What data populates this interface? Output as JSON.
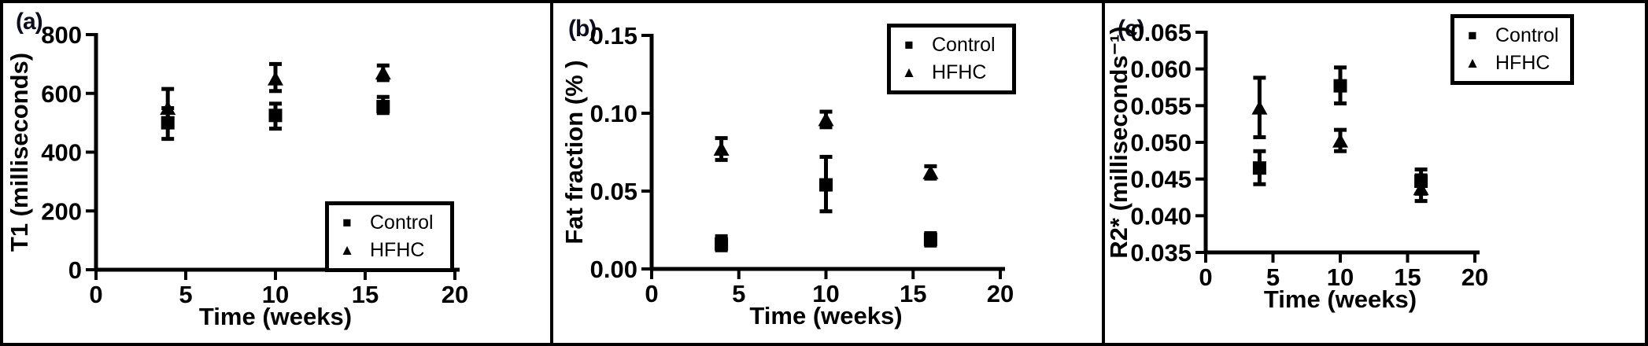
{
  "figure": {
    "background": "#ffffff",
    "border_color": "#000000",
    "accent_color": "#000000"
  },
  "chart_data": [
    {
      "type": "scatter",
      "panel_label": "(a)",
      "xlabel": "Time (weeks)",
      "ylabel": "T1 (milliseconds)",
      "xlim": [
        0,
        20
      ],
      "ylim": [
        0,
        800
      ],
      "xticks": {
        "values": [
          0,
          5,
          10,
          15,
          20
        ],
        "labels": [
          "0",
          "5",
          "10",
          "15",
          "20"
        ]
      },
      "yticks": {
        "values": [
          0,
          200,
          400,
          600,
          800
        ],
        "labels": [
          "0",
          "200",
          "400",
          "600",
          "800"
        ]
      },
      "grid": false,
      "legend": {
        "position": "bottom-right",
        "entries": [
          {
            "label": "Control",
            "marker": "square"
          },
          {
            "label": "HFHC",
            "marker": "triangle"
          }
        ]
      },
      "series": [
        {
          "name": "Control",
          "marker": "square",
          "color": "#000000",
          "x": [
            4,
            10,
            16
          ],
          "y": [
            500,
            525,
            555
          ],
          "y_lo": [
            445,
            480,
            533
          ],
          "y_hi": [
            550,
            565,
            588
          ]
        },
        {
          "name": "HFHC",
          "marker": "triangle",
          "color": "#000000",
          "x": [
            4,
            10,
            16
          ],
          "y": [
            550,
            650,
            670
          ],
          "y_lo": [
            505,
            608,
            645
          ],
          "y_hi": [
            615,
            700,
            695
          ]
        }
      ]
    },
    {
      "type": "scatter",
      "panel_label": "(b)",
      "xlabel": "Time (weeks)",
      "ylabel": "Fat fraction (% )",
      "xlim": [
        0,
        20
      ],
      "ylim": [
        0,
        0.15
      ],
      "xticks": {
        "values": [
          0,
          5,
          10,
          15,
          20
        ],
        "labels": [
          "0",
          "5",
          "10",
          "15",
          "20"
        ]
      },
      "yticks": {
        "values": [
          0,
          0.05,
          0.1,
          0.15
        ],
        "labels": [
          "0.00",
          "0.05",
          "0.10",
          "0.15"
        ]
      },
      "grid": false,
      "legend": {
        "position": "top-right",
        "entries": [
          {
            "label": "Control",
            "marker": "square"
          },
          {
            "label": "HFHC",
            "marker": "triangle"
          }
        ]
      },
      "series": [
        {
          "name": "Control",
          "marker": "square",
          "color": "#000000",
          "x": [
            4,
            10,
            16
          ],
          "y": [
            0.016,
            0.054,
            0.019
          ],
          "y_lo": [
            0.012,
            0.037,
            0.015
          ],
          "y_hi": [
            0.021,
            0.072,
            0.023
          ]
        },
        {
          "name": "HFHC",
          "marker": "triangle",
          "color": "#000000",
          "x": [
            4,
            10,
            16
          ],
          "y": [
            0.077,
            0.096,
            0.062
          ],
          "y_lo": [
            0.07,
            0.091,
            0.058
          ],
          "y_hi": [
            0.084,
            0.101,
            0.066
          ]
        }
      ]
    },
    {
      "type": "scatter",
      "panel_label": "(c)",
      "xlabel": "Time (weeks)",
      "ylabel": "R2* (milliseconds⁻¹)",
      "xlim": [
        0,
        20
      ],
      "ylim": [
        0.035,
        0.065
      ],
      "xticks": {
        "values": [
          0,
          5,
          10,
          15,
          20
        ],
        "labels": [
          "0",
          "5",
          "10",
          "15",
          "20"
        ]
      },
      "yticks": {
        "values": [
          0.035,
          0.04,
          0.045,
          0.05,
          0.055,
          0.06,
          0.065
        ],
        "labels": [
          "0.035",
          "0.040",
          "0.045",
          "0.050",
          "0.055",
          "0.060",
          "0.065"
        ]
      },
      "grid": false,
      "legend": {
        "position": "top-right",
        "entries": [
          {
            "label": "Control",
            "marker": "square"
          },
          {
            "label": "HFHC",
            "marker": "triangle"
          }
        ]
      },
      "series": [
        {
          "name": "Control",
          "marker": "square",
          "color": "#000000",
          "x": [
            4,
            10,
            16
          ],
          "y": [
            0.0465,
            0.0577,
            0.0447
          ],
          "y_lo": [
            0.0443,
            0.0553,
            0.043
          ],
          "y_hi": [
            0.0488,
            0.0602,
            0.0463
          ]
        },
        {
          "name": "HFHC",
          "marker": "triangle",
          "color": "#000000",
          "x": [
            4,
            10,
            16
          ],
          "y": [
            0.0547,
            0.0502,
            0.0437
          ],
          "y_lo": [
            0.0507,
            0.0488,
            0.042
          ],
          "y_hi": [
            0.0588,
            0.0517,
            0.0455
          ]
        }
      ]
    }
  ],
  "legend_marker_glyphs": {
    "square": "■",
    "triangle": "▲"
  }
}
